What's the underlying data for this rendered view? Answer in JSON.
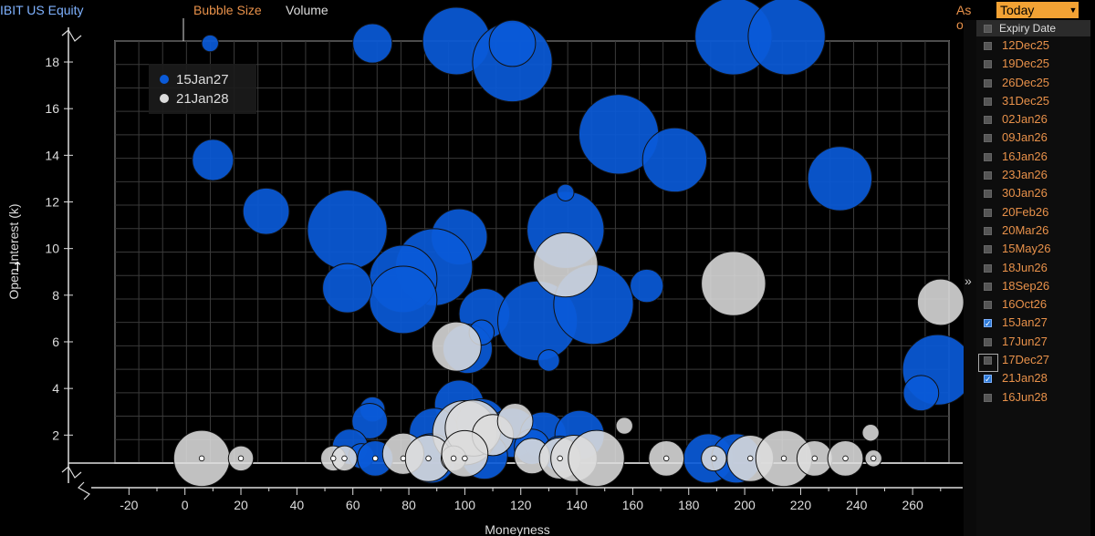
{
  "header": {
    "ticker": "IBIT US Equity",
    "bubble_size_label": "Bubble Size",
    "bubble_size_value": "Volume",
    "as_of_label": "As of",
    "as_of_value": "Today"
  },
  "colors": {
    "series_1": "#0a5ad8",
    "series_2": "#dcdcdc",
    "grid": "#3a3a3a",
    "accent": "#e8914a"
  },
  "expiry_panel": {
    "header": "Expiry Date",
    "items": [
      {
        "label": "12Dec25",
        "checked": false
      },
      {
        "label": "19Dec25",
        "checked": false
      },
      {
        "label": "26Dec25",
        "checked": false
      },
      {
        "label": "31Dec25",
        "checked": false
      },
      {
        "label": "02Jan26",
        "checked": false
      },
      {
        "label": "09Jan26",
        "checked": false
      },
      {
        "label": "16Jan26",
        "checked": false
      },
      {
        "label": "23Jan26",
        "checked": false
      },
      {
        "label": "30Jan26",
        "checked": false
      },
      {
        "label": "20Feb26",
        "checked": false
      },
      {
        "label": "20Mar26",
        "checked": false
      },
      {
        "label": "15May26",
        "checked": false
      },
      {
        "label": "18Jun26",
        "checked": false
      },
      {
        "label": "18Sep26",
        "checked": false
      },
      {
        "label": "16Oct26",
        "checked": false
      },
      {
        "label": "15Jan27",
        "checked": true
      },
      {
        "label": "17Jun27",
        "checked": false
      },
      {
        "label": "17Dec27",
        "checked": false
      },
      {
        "label": "21Jan28",
        "checked": true
      },
      {
        "label": "16Jun28",
        "checked": false
      }
    ]
  },
  "chart_data": {
    "type": "scatter",
    "xlabel": "Moneyness",
    "ylabel": "Open Interest (k)",
    "xlim": [
      -25,
      273
    ],
    "ylim": [
      0.8,
      18.9
    ],
    "x_ticks": [
      -20,
      0,
      20,
      40,
      60,
      80,
      100,
      120,
      140,
      160,
      180,
      200,
      220,
      240,
      260
    ],
    "y_ticks": [
      2,
      4,
      6,
      8,
      10,
      12,
      14,
      16,
      18
    ],
    "grid": true,
    "legend_position": "top-left",
    "series": [
      {
        "name": "15Jan27",
        "color": "#0a5ad8",
        "points": [
          {
            "x": 9,
            "y": 18.8,
            "volume": 1
          },
          {
            "x": 67,
            "y": 18.8,
            "volume": 9
          },
          {
            "x": 97,
            "y": 18.9,
            "volume": 30
          },
          {
            "x": 117,
            "y": 18.0,
            "volume": 43
          },
          {
            "x": 117,
            "y": 18.8,
            "volume": 13
          },
          {
            "x": 196,
            "y": 19.1,
            "volume": 40
          },
          {
            "x": 215,
            "y": 19.1,
            "volume": 40
          },
          {
            "x": 155,
            "y": 14.9,
            "volume": 43
          },
          {
            "x": 175,
            "y": 13.8,
            "volume": 27
          },
          {
            "x": 234,
            "y": 13.0,
            "volume": 27
          },
          {
            "x": 10,
            "y": 13.8,
            "volume": 10
          },
          {
            "x": 29,
            "y": 11.6,
            "volume": 13
          },
          {
            "x": 58,
            "y": 10.8,
            "volume": 43
          },
          {
            "x": 98,
            "y": 10.5,
            "volume": 20
          },
          {
            "x": 136,
            "y": 10.8,
            "volume": 40
          },
          {
            "x": 136,
            "y": 12.4,
            "volume": 1
          },
          {
            "x": 89,
            "y": 9.2,
            "volume": 40
          },
          {
            "x": 78,
            "y": 8.7,
            "volume": 30
          },
          {
            "x": 78,
            "y": 7.8,
            "volume": 30
          },
          {
            "x": 58,
            "y": 8.3,
            "volume": 15
          },
          {
            "x": 165,
            "y": 8.4,
            "volume": 6
          },
          {
            "x": 107,
            "y": 7.2,
            "volume": 16
          },
          {
            "x": 126,
            "y": 6.9,
            "volume": 43
          },
          {
            "x": 146,
            "y": 7.6,
            "volume": 43
          },
          {
            "x": 101,
            "y": 5.7,
            "volume": 15
          },
          {
            "x": 130,
            "y": 5.2,
            "volume": 2
          },
          {
            "x": 106,
            "y": 6.4,
            "volume": 3
          },
          {
            "x": 269,
            "y": 4.8,
            "volume": 33
          },
          {
            "x": 263,
            "y": 3.8,
            "volume": 7
          },
          {
            "x": 67,
            "y": 3.1,
            "volume": 3
          },
          {
            "x": 66,
            "y": 2.6,
            "volume": 7
          },
          {
            "x": 98,
            "y": 3.3,
            "volume": 15
          },
          {
            "x": 89,
            "y": 2.1,
            "volume": 15
          },
          {
            "x": 106,
            "y": 2.5,
            "volume": 15
          },
          {
            "x": 117,
            "y": 2.1,
            "volume": 15
          },
          {
            "x": 128,
            "y": 2.0,
            "volume": 13
          },
          {
            "x": 141,
            "y": 2.0,
            "volume": 15
          },
          {
            "x": 59,
            "y": 1.5,
            "volume": 7
          },
          {
            "x": 63,
            "y": 1.1,
            "volume": 3
          },
          {
            "x": 68,
            "y": 1.0,
            "volume": 7
          },
          {
            "x": 88,
            "y": 1.0,
            "volume": 15
          },
          {
            "x": 107,
            "y": 1.1,
            "volume": 13
          },
          {
            "x": 124,
            "y": 1.5,
            "volume": 7
          },
          {
            "x": 134,
            "y": 1.2,
            "volume": 7
          },
          {
            "x": 187,
            "y": 1.0,
            "volume": 15
          },
          {
            "x": 197,
            "y": 1.0,
            "volume": 15
          }
        ]
      },
      {
        "name": "21Jan28",
        "color": "#dcdcdc",
        "points": [
          {
            "x": 136,
            "y": 9.3,
            "volume": 27
          },
          {
            "x": 196,
            "y": 8.5,
            "volume": 27
          },
          {
            "x": 270,
            "y": 7.7,
            "volume": 13
          },
          {
            "x": 97,
            "y": 5.8,
            "volume": 15
          },
          {
            "x": 100,
            "y": 2.1,
            "volume": 27
          },
          {
            "x": 103,
            "y": 2.3,
            "volume": 20
          },
          {
            "x": 110,
            "y": 2.0,
            "volume": 10
          },
          {
            "x": 118,
            "y": 2.6,
            "volume": 7
          },
          {
            "x": 157,
            "y": 2.4,
            "volume": 1
          },
          {
            "x": 245,
            "y": 2.1,
            "volume": 1
          },
          {
            "x": 6,
            "y": 1.0,
            "volume": 20
          },
          {
            "x": 20,
            "y": 1.0,
            "volume": 3
          },
          {
            "x": 53,
            "y": 1.0,
            "volume": 3
          },
          {
            "x": 57,
            "y": 1.0,
            "volume": 3
          },
          {
            "x": 78,
            "y": 1.2,
            "volume": 10
          },
          {
            "x": 87,
            "y": 1.0,
            "volume": 13
          },
          {
            "x": 96,
            "y": 1.0,
            "volume": 3
          },
          {
            "x": 100,
            "y": 1.2,
            "volume": 13
          },
          {
            "x": 124,
            "y": 1.1,
            "volume": 7
          },
          {
            "x": 134,
            "y": 1.0,
            "volume": 10
          },
          {
            "x": 139,
            "y": 1.0,
            "volume": 13
          },
          {
            "x": 147,
            "y": 1.0,
            "volume": 20
          },
          {
            "x": 172,
            "y": 1.0,
            "volume": 7
          },
          {
            "x": 189,
            "y": 1.0,
            "volume": 3
          },
          {
            "x": 202,
            "y": 1.0,
            "volume": 13
          },
          {
            "x": 214,
            "y": 1.0,
            "volume": 20
          },
          {
            "x": 225,
            "y": 1.0,
            "volume": 7
          },
          {
            "x": 236,
            "y": 1.0,
            "volume": 7
          },
          {
            "x": 246,
            "y": 1.0,
            "volume": 1
          }
        ]
      }
    ]
  }
}
